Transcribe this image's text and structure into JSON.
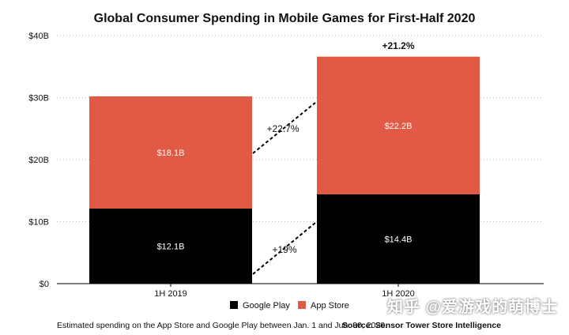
{
  "chart_data": {
    "type": "bar",
    "stacked": true,
    "title": "Global Consumer Spending in Mobile Games for First-Half 2020",
    "categories": [
      "1H 2019",
      "1H 2020"
    ],
    "series": [
      {
        "name": "Google Play",
        "values": [
          12.1,
          14.4
        ],
        "labels": [
          "$12.1B",
          "$14.4B"
        ],
        "color": "#000000"
      },
      {
        "name": "App Store",
        "values": [
          18.1,
          22.2
        ],
        "labels": [
          "$18.1B",
          "$22.2B"
        ],
        "color": "#e05a45"
      }
    ],
    "ylim": [
      0,
      40
    ],
    "yticks": [
      0,
      10,
      20,
      30,
      40
    ],
    "ytick_labels": [
      "$0",
      "$10B",
      "$20B",
      "$30B",
      "$40B"
    ],
    "grid": true,
    "legend": "bottom",
    "annotations": {
      "total_growth": "+21.2%",
      "app_store_growth": "+22.7%",
      "google_play_growth": "+19%"
    }
  },
  "footnote": "Estimated spending on the App Store and Google Play between Jan. 1 and Jun. 30, 2020.",
  "source": "Source: Sensor Tower Store Intelligence",
  "watermark": "知乎 @爱游戏的萌博士"
}
